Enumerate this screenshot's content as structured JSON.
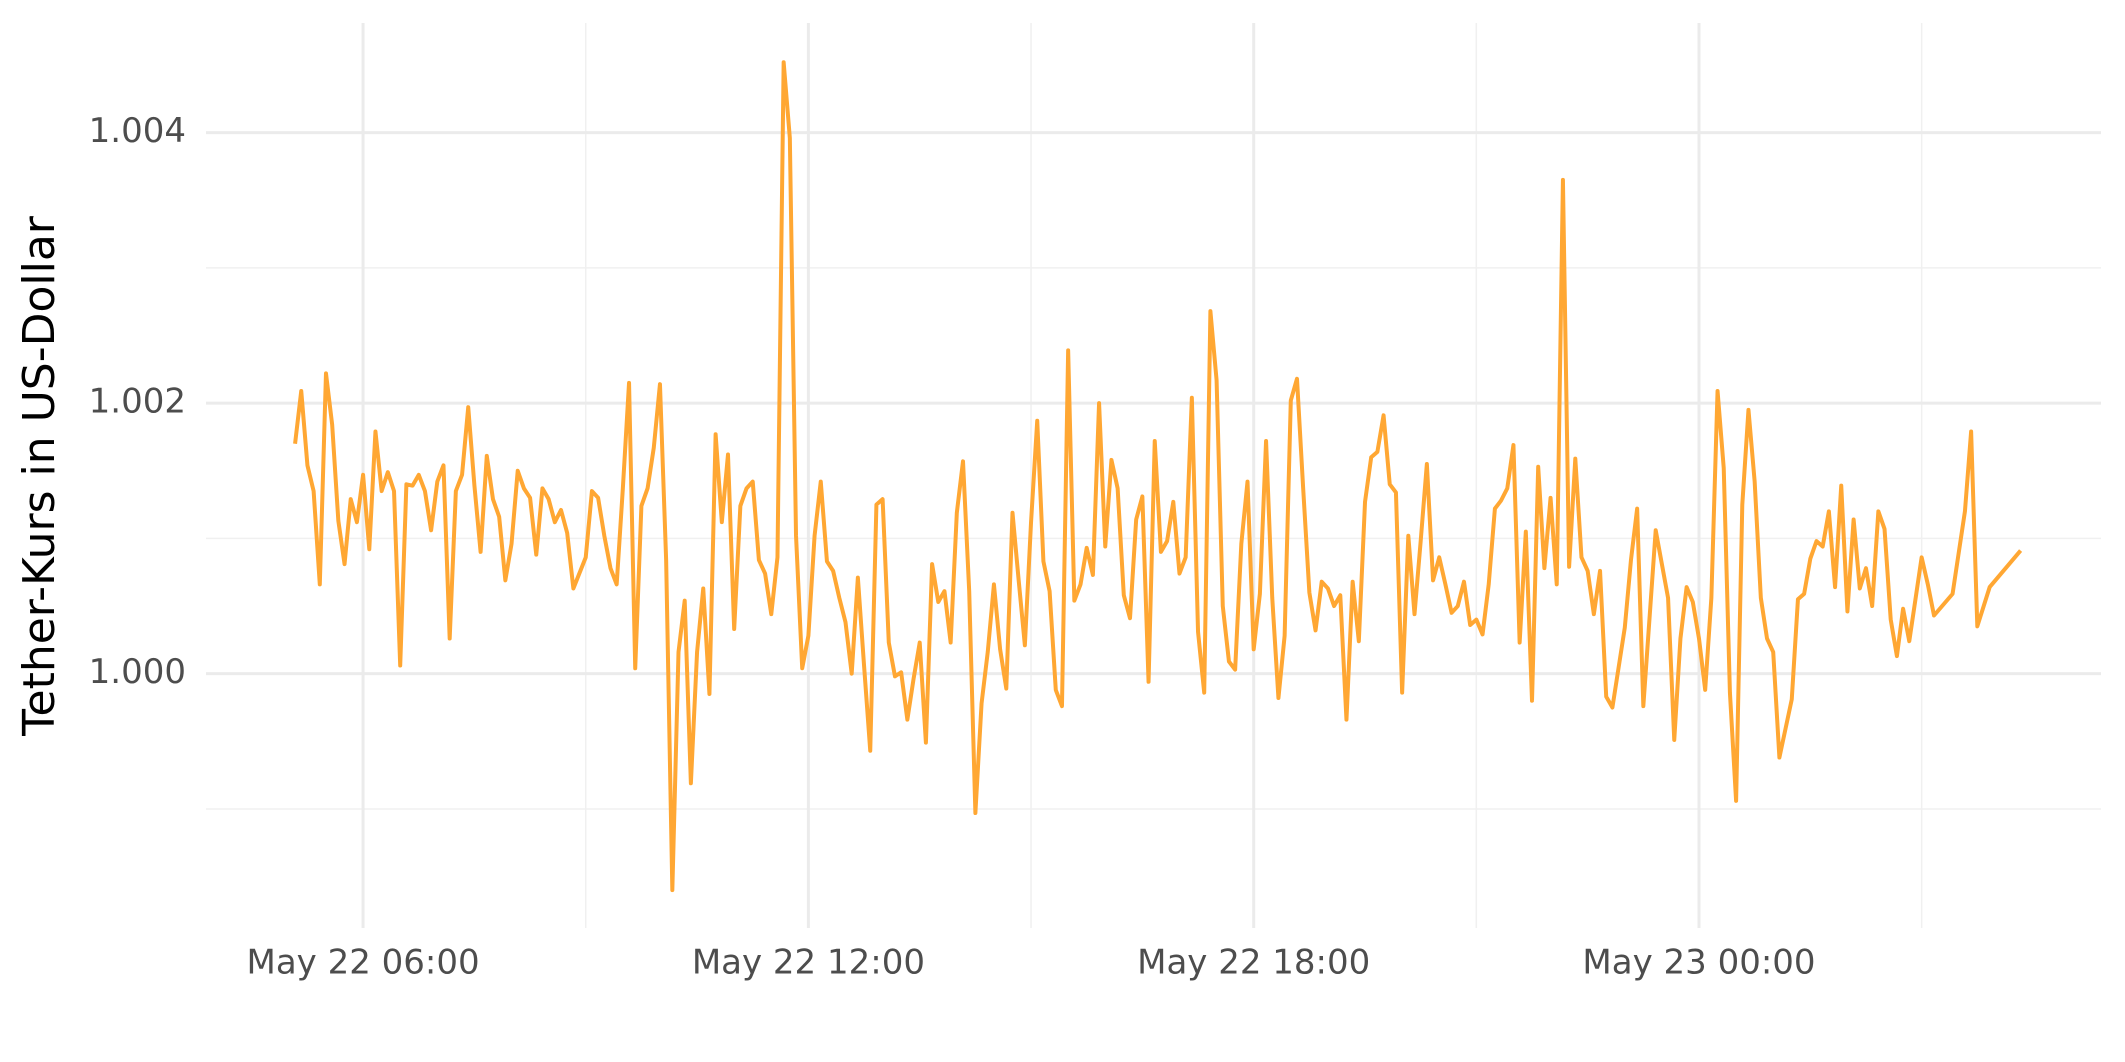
{
  "chart_data": {
    "type": "line",
    "y_label": "Tether-Kurs in US-Dollar",
    "color": "#ffa733",
    "x": [
      "May 22 05:05",
      "May 22 05:10",
      "May 22 05:15",
      "May 22 05:20",
      "May 22 05:25",
      "May 22 05:30",
      "May 22 05:35",
      "May 22 05:40",
      "May 22 05:45",
      "May 22 05:50",
      "May 22 05:55",
      "May 22 06:00",
      "May 22 06:05",
      "May 22 06:10",
      "May 22 06:15",
      "May 22 06:20",
      "May 22 06:25",
      "May 22 06:30",
      "May 22 06:35",
      "May 22 06:40",
      "May 22 06:45",
      "May 22 06:50",
      "May 22 06:55",
      "May 22 07:00",
      "May 22 07:05",
      "May 22 07:10",
      "May 22 07:15",
      "May 22 07:20",
      "May 22 07:25",
      "May 22 07:30",
      "May 22 07:35",
      "May 22 07:40",
      "May 22 07:45",
      "May 22 07:50",
      "May 22 07:55",
      "May 22 08:00",
      "May 22 08:05",
      "May 22 08:10",
      "May 22 08:15",
      "May 22 08:20",
      "May 22 08:25",
      "May 22 08:30",
      "May 22 08:35",
      "May 22 08:40",
      "May 22 08:45",
      "May 22 08:50",
      "May 22 09:00",
      "May 22 09:05",
      "May 22 09:10",
      "May 22 09:15",
      "May 22 09:20",
      "May 22 09:25",
      "May 22 09:30",
      "May 22 09:35",
      "May 22 09:40",
      "May 22 09:45",
      "May 22 09:50",
      "May 22 09:55",
      "May 22 10:00",
      "May 22 10:05",
      "May 22 10:10",
      "May 22 10:15",
      "May 22 10:20",
      "May 22 10:25",
      "May 22 10:30",
      "May 22 10:35",
      "May 22 10:40",
      "May 22 10:45",
      "May 22 10:50",
      "May 22 10:55",
      "May 22 11:00",
      "May 22 11:05",
      "May 22 11:10",
      "May 22 11:15",
      "May 22 11:20",
      "May 22 11:25",
      "May 22 11:30",
      "May 22 11:35",
      "May 22 11:40",
      "May 22 11:45",
      "May 22 11:50",
      "May 22 11:55",
      "May 22 12:00",
      "May 22 12:05",
      "May 22 12:10",
      "May 22 12:15",
      "May 22 12:20",
      "May 22 12:25",
      "May 22 12:30",
      "May 22 12:35",
      "May 22 12:40",
      "May 22 12:45",
      "May 22 12:50",
      "May 22 12:55",
      "May 22 13:00",
      "May 22 13:05",
      "May 22 13:10",
      "May 22 13:15",
      "May 22 13:20",
      "May 22 13:25",
      "May 22 13:30",
      "May 22 13:35",
      "May 22 13:40",
      "May 22 13:45",
      "May 22 13:50",
      "May 22 13:55",
      "May 22 14:00",
      "May 22 14:05",
      "May 22 14:10",
      "May 22 14:15",
      "May 22 14:20",
      "May 22 14:25",
      "May 22 14:30",
      "May 22 14:35",
      "May 22 14:40",
      "May 22 14:45",
      "May 22 14:50",
      "May 22 14:55",
      "May 22 15:00",
      "May 22 15:05",
      "May 22 15:10",
      "May 22 15:15",
      "May 22 15:20",
      "May 22 15:25",
      "May 22 15:30",
      "May 22 15:35",
      "May 22 15:40",
      "May 22 15:45",
      "May 22 15:50",
      "May 22 15:55",
      "May 22 16:00",
      "May 22 16:05",
      "May 22 16:10",
      "May 22 16:15",
      "May 22 16:20",
      "May 22 16:25",
      "May 22 16:30",
      "May 22 16:35",
      "May 22 16:40",
      "May 22 16:45",
      "May 22 16:50",
      "May 22 16:55",
      "May 22 17:00",
      "May 22 17:05",
      "May 22 17:10",
      "May 22 17:15",
      "May 22 17:20",
      "May 22 17:25",
      "May 22 17:30",
      "May 22 17:35",
      "May 22 17:40",
      "May 22 17:45",
      "May 22 17:50",
      "May 22 17:55",
      "May 22 18:00",
      "May 22 18:05",
      "May 22 18:10",
      "May 22 18:15",
      "May 22 18:20",
      "May 22 18:25",
      "May 22 18:30",
      "May 22 18:35",
      "May 22 18:40",
      "May 22 18:45",
      "May 22 18:50",
      "May 22 18:55",
      "May 22 19:00",
      "May 22 19:05",
      "May 22 19:10",
      "May 22 19:15",
      "May 22 19:20",
      "May 22 19:25",
      "May 22 19:30",
      "May 22 19:35",
      "May 22 19:40",
      "May 22 19:45",
      "May 22 19:50",
      "May 22 19:55",
      "May 22 20:00",
      "May 22 20:05",
      "May 22 20:10",
      "May 22 20:15",
      "May 22 20:20",
      "May 22 20:25",
      "May 22 20:30",
      "May 22 20:35",
      "May 22 20:40",
      "May 22 20:45",
      "May 22 20:50",
      "May 22 20:55",
      "May 22 21:00",
      "May 22 21:05",
      "May 22 21:10",
      "May 22 21:15",
      "May 22 21:20",
      "May 22 21:25",
      "May 22 21:30",
      "May 22 21:35",
      "May 22 21:40",
      "May 22 21:45",
      "May 22 21:50",
      "May 22 21:55",
      "May 22 22:00",
      "May 22 22:05",
      "May 22 22:10",
      "May 22 22:15",
      "May 22 22:20",
      "May 22 22:25",
      "May 22 22:30",
      "May 22 22:35",
      "May 22 22:40",
      "May 22 22:45",
      "May 22 22:50",
      "May 22 23:00",
      "May 22 23:05",
      "May 22 23:10",
      "May 22 23:15",
      "May 22 23:20",
      "May 22 23:25",
      "May 22 23:30",
      "May 22 23:35",
      "May 22 23:40",
      "May 22 23:45",
      "May 22 23:50",
      "May 22 23:55",
      "May 23 00:00",
      "May 23 00:05",
      "May 23 00:10",
      "May 23 00:15",
      "May 23 00:20",
      "May 23 00:25",
      "May 23 00:30",
      "May 23 00:35",
      "May 23 00:40",
      "May 23 00:45",
      "May 23 00:50",
      "May 23 00:55",
      "May 23 01:00",
      "May 23 01:05",
      "May 23 01:15",
      "May 23 01:20",
      "May 23 01:25",
      "May 23 01:30",
      "May 23 01:35",
      "May 23 01:40",
      "May 23 01:45",
      "May 23 01:50",
      "May 23 01:55",
      "May 23 02:00",
      "May 23 02:05",
      "May 23 02:10",
      "May 23 02:15",
      "May 23 02:20",
      "May 23 02:25",
      "May 23 02:30",
      "May 23 02:35",
      "May 23 02:40",
      "May 23 02:45",
      "May 23 02:50",
      "May 23 02:55",
      "May 23 03:00",
      "May 23 03:05",
      "May 23 03:10",
      "May 23 03:25",
      "May 23 03:35",
      "May 23 03:40",
      "May 23 03:45",
      "May 23 03:55",
      "May 23 04:20"
    ],
    "values": [
      1.0017,
      1.00209,
      1.00154,
      1.00135,
      1.00066,
      1.00222,
      1.00184,
      1.00113,
      1.00081,
      1.00129,
      1.00112,
      1.00147,
      1.00092,
      1.00179,
      1.00135,
      1.00149,
      1.00135,
      1.00006,
      1.0014,
      1.00139,
      1.00147,
      1.00135,
      1.00106,
      1.00142,
      1.00154,
      1.00026,
      1.00135,
      1.00147,
      1.00197,
      1.00139,
      1.0009,
      1.00161,
      1.00129,
      1.00116,
      1.00069,
      1.00096,
      1.0015,
      1.00137,
      1.0013,
      1.00088,
      1.00137,
      1.00129,
      1.00112,
      1.00121,
      1.00104,
      1.00063,
      1.00086,
      1.00135,
      1.0013,
      1.00102,
      1.00078,
      1.00066,
      1.00137,
      1.00215,
      1.00004,
      1.00124,
      1.00137,
      1.00167,
      1.00214,
      1.00084,
      0.9984,
      1.00016,
      1.00054,
      0.99919,
      1.00016,
      1.00063,
      0.99985,
      1.00177,
      1.00112,
      1.00162,
      1.00033,
      1.00124,
      1.00137,
      1.00142,
      1.00084,
      1.00074,
      1.00044,
      1.00086,
      1.00452,
      1.00396,
      1.00102,
      1.00004,
      1.00028,
      1.00102,
      1.00142,
      1.00083,
      1.00076,
      1.00056,
      1.00038,
      1.0,
      1.00071,
      1.00006,
      0.99943,
      1.00125,
      1.00129,
      1.00023,
      0.99998,
      1.00001,
      0.99966,
      0.99996,
      1.00023,
      0.99949,
      1.00081,
      1.00053,
      1.00061,
      1.00023,
      1.00119,
      1.00157,
      1.00061,
      0.99897,
      0.99978,
      1.00016,
      1.00066,
      1.00018,
      0.99989,
      1.00119,
      1.00069,
      1.00021,
      1.00112,
      1.00187,
      1.00083,
      1.00061,
      0.99988,
      0.99976,
      1.00239,
      1.00054,
      1.00066,
      1.00093,
      1.00073,
      1.002,
      1.00094,
      1.00158,
      1.00137,
      1.00058,
      1.00041,
      1.00114,
      1.00131,
      0.99994,
      1.00172,
      1.0009,
      1.00098,
      1.00127,
      1.00074,
      1.00086,
      1.00204,
      1.00031,
      0.99986,
      1.00268,
      1.00217,
      1.0005,
      1.00009,
      1.00003,
      1.00096,
      1.00142,
      1.00018,
      1.00059,
      1.00172,
      1.00056,
      0.99982,
      1.00028,
      1.00202,
      1.00218,
      1.00137,
      1.0006,
      1.00032,
      1.00068,
      1.00063,
      1.0005,
      1.00058,
      0.99966,
      1.00068,
      1.00024,
      1.00127,
      1.0016,
      1.00164,
      1.00191,
      1.0014,
      1.00134,
      0.99986,
      1.00102,
      1.00044,
      1.00098,
      1.00155,
      1.00069,
      1.00086,
      1.00066,
      1.00045,
      1.0005,
      1.00068,
      1.00036,
      1.0004,
      1.00029,
      1.00066,
      1.00122,
      1.00128,
      1.00137,
      1.00169,
      1.00023,
      1.00105,
      0.9998,
      1.00153,
      1.00078,
      1.0013,
      1.00066,
      1.00365,
      1.00079,
      1.00159,
      1.00086,
      1.00076,
      1.00044,
      1.00076,
      0.99983,
      0.99975,
      1.00034,
      1.00084,
      1.00122,
      0.99976,
      1.00041,
      1.00106,
      1.00081,
      1.00056,
      0.99951,
      1.00026,
      1.00064,
      1.00053,
      1.00026,
      0.99988,
      1.00056,
      1.00209,
      1.00152,
      0.99986,
      0.99906,
      1.00125,
      1.00195,
      1.00142,
      1.00056,
      1.00026,
      1.00016,
      0.99938,
      0.99981,
      1.00055,
      1.00059,
      1.00085,
      1.00098,
      1.00094,
      1.0012,
      1.00064,
      1.00139,
      1.00046,
      1.00114,
      1.00063,
      1.00078,
      1.0005,
      1.0012,
      1.00107,
      1.0004,
      1.00013,
      1.00048,
      1.00024,
      1.00055,
      1.00086,
      1.00066,
      1.00043,
      1.00059,
      1.0012,
      1.00179,
      1.00035,
      1.00064,
      1.00091
    ],
    "xlim": [
      "May 22 03:53",
      "May 23 05:25"
    ],
    "xticks": [
      "May 22 06:00",
      "May 22 12:00",
      "May 22 18:00",
      "May 23 00:00"
    ],
    "x_minor_ticks": [
      "May 22 09:00",
      "May 22 15:00",
      "May 22 21:00",
      "May 23 03:00"
    ],
    "ylim": [
      0.99812,
      1.00481
    ],
    "yticks": [
      {
        "value": 1,
        "label": "1.000"
      },
      {
        "value": 1.002,
        "label": "1.002"
      },
      {
        "value": 1.004,
        "label": "1.004"
      }
    ],
    "y_minor_ticks": [
      0.999,
      1.001,
      1.003
    ],
    "grid": true
  }
}
